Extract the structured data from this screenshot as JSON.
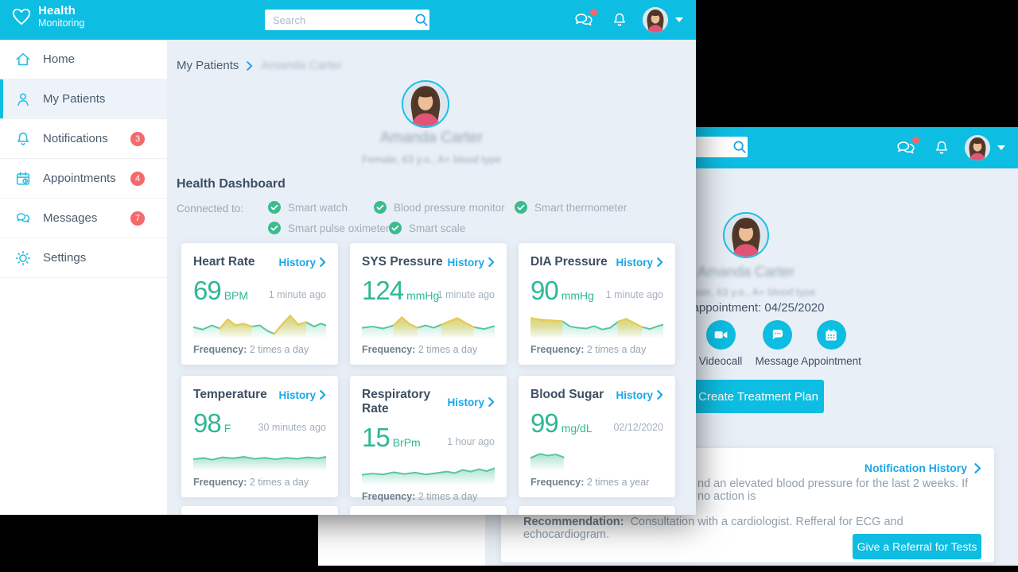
{
  "colors": {
    "accent": "#0dbde2",
    "link": "#1aa7e8",
    "value_green": "#2eb894",
    "spark_green": "#57c6a2",
    "spark_yellow": "#edc94d",
    "badge_red": "#f5696b",
    "check_green": "#3bbb8e"
  },
  "front_window": {
    "header": {
      "logo_title": "Health",
      "logo_subtitle": "Monitoring",
      "search_placeholder": "Search"
    },
    "sidebar": {
      "items": [
        {
          "label": "Home",
          "icon": "home"
        },
        {
          "label": "My Patients",
          "icon": "patients",
          "active": true
        },
        {
          "label": "Notifications",
          "icon": "bell",
          "badge": "3"
        },
        {
          "label": "Appointments",
          "icon": "calendar",
          "badge": "4"
        },
        {
          "label": "Messages",
          "icon": "chat",
          "badge": "7"
        },
        {
          "label": "Settings",
          "icon": "gear"
        }
      ]
    },
    "breadcrumb": {
      "parent": "My Patients",
      "current": "Amanda Carter"
    },
    "patient": {
      "name": "Amanda Carter",
      "details": "Female, 63 y.o., A+ blood type"
    },
    "dashboard": {
      "title": "Health Dashboard",
      "connected_label": "Connected to:",
      "devices": [
        "Smart watch",
        "Blood pressure monitor",
        "Smart thermometer",
        "Smart pulse oximeter",
        "Smart scale"
      ],
      "history_label": "History",
      "frequency_label": "Frequency:",
      "cards": [
        {
          "title": "Heart Rate",
          "value": "69",
          "unit": "BPM",
          "time": "1 minute ago",
          "frequency": "2 times a day",
          "spark": {
            "points": [
              [
                0,
                38
              ],
              [
                7,
                28
              ],
              [
                14,
                45
              ],
              [
                20,
                32
              ],
              [
                26,
                70
              ],
              [
                32,
                45
              ],
              [
                38,
                52
              ],
              [
                44,
                40
              ],
              [
                50,
                45
              ],
              [
                56,
                22
              ],
              [
                61,
                10
              ],
              [
                67,
                50
              ],
              [
                73,
                85
              ],
              [
                79,
                48
              ],
              [
                85,
                58
              ],
              [
                91,
                40
              ],
              [
                96,
                52
              ],
              [
                100,
                45
              ]
            ],
            "yellow": [
              [
                20,
                44
              ],
              [
                58,
                88
              ]
            ]
          }
        },
        {
          "title": "SYS Pressure",
          "value": "124",
          "unit": "mmHg",
          "time": "1 minute ago",
          "frequency": "2 times a day",
          "spark": {
            "points": [
              [
                0,
                35
              ],
              [
                8,
                40
              ],
              [
                16,
                32
              ],
              [
                24,
                45
              ],
              [
                30,
                78
              ],
              [
                36,
                50
              ],
              [
                42,
                35
              ],
              [
                48,
                45
              ],
              [
                54,
                35
              ],
              [
                60,
                48
              ],
              [
                66,
                62
              ],
              [
                72,
                75
              ],
              [
                78,
                55
              ],
              [
                84,
                38
              ],
              [
                92,
                30
              ],
              [
                100,
                42
              ]
            ],
            "yellow": [
              [
                24,
                42
              ],
              [
                58,
                84
              ]
            ]
          }
        },
        {
          "title": "DIA Pressure",
          "value": "90",
          "unit": "mmHg",
          "time": "1 minute ago",
          "frequency": "2 times a day",
          "spark": {
            "points": [
              [
                0,
                75
              ],
              [
                8,
                68
              ],
              [
                16,
                65
              ],
              [
                24,
                62
              ],
              [
                30,
                40
              ],
              [
                36,
                35
              ],
              [
                42,
                32
              ],
              [
                48,
                42
              ],
              [
                54,
                28
              ],
              [
                60,
                35
              ],
              [
                66,
                60
              ],
              [
                72,
                72
              ],
              [
                78,
                55
              ],
              [
                84,
                38
              ],
              [
                90,
                30
              ],
              [
                96,
                42
              ],
              [
                100,
                48
              ]
            ],
            "yellow": [
              [
                0,
                28
              ],
              [
                62,
                86
              ]
            ]
          }
        },
        {
          "title": "Temperature",
          "value": "98",
          "unit": "F",
          "time": "30 minutes ago",
          "frequency": "2 times a day",
          "spark": {
            "points": [
              [
                0,
                40
              ],
              [
                8,
                45
              ],
              [
                14,
                38
              ],
              [
                22,
                48
              ],
              [
                30,
                44
              ],
              [
                38,
                50
              ],
              [
                46,
                42
              ],
              [
                54,
                46
              ],
              [
                62,
                40
              ],
              [
                70,
                46
              ],
              [
                78,
                42
              ],
              [
                86,
                48
              ],
              [
                94,
                44
              ],
              [
                100,
                50
              ]
            ],
            "yellow": []
          }
        },
        {
          "title": "Respiratory Rate",
          "value": "15",
          "unit": "BrPm",
          "time": "1 hour ago",
          "frequency": "2 times a day",
          "spark": {
            "points": [
              [
                0,
                35
              ],
              [
                8,
                40
              ],
              [
                16,
                36
              ],
              [
                24,
                45
              ],
              [
                32,
                38
              ],
              [
                40,
                44
              ],
              [
                48,
                36
              ],
              [
                56,
                42
              ],
              [
                64,
                48
              ],
              [
                70,
                42
              ],
              [
                76,
                55
              ],
              [
                82,
                48
              ],
              [
                88,
                58
              ],
              [
                94,
                50
              ],
              [
                100,
                62
              ]
            ],
            "yellow": []
          }
        },
        {
          "title": "Blood Sugar",
          "value": "99",
          "unit": "mg/dL",
          "time": "02/12/2020",
          "frequency": "2 times a year",
          "spark": {
            "points": [
              [
                0,
                45
              ],
              [
                7,
                62
              ],
              [
                13,
                55
              ],
              [
                19,
                60
              ],
              [
                25,
                48
              ]
            ],
            "yellow": []
          }
        }
      ]
    }
  },
  "back_window": {
    "patient": {
      "name": "Amanda Carter",
      "details": "Female, 63 y.o., A+ blood type",
      "appointment": "Last appointment: 04/25/2020"
    },
    "actions": [
      {
        "label": "Videocall",
        "icon": "video-camera"
      },
      {
        "label": "Message",
        "icon": "chat-bubble"
      },
      {
        "label": "Appointment",
        "icon": "calendar"
      }
    ],
    "treatment_button": "Create Treatment Plan",
    "notification_card": {
      "history_link": "Notification History",
      "body": "nd an elevated blood pressure for the last 2 weeks. If no action is",
      "recommendation_label": "Recommendation:",
      "recommendation": "Consultation with a cardiologist. Refferal for ECG and echocardiogram.",
      "referral_button": "Give a Referral for Tests"
    }
  }
}
